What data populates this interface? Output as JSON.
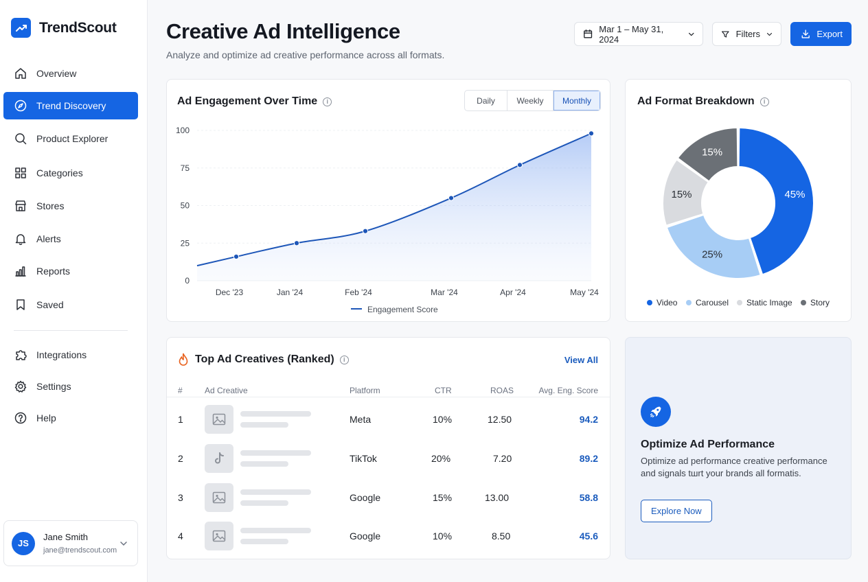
{
  "brand": {
    "name": "TrendScout"
  },
  "sidebar": {
    "items": [
      {
        "label": "Overview",
        "icon": "home-icon",
        "active": false
      },
      {
        "label": "Trend Discovery",
        "icon": "compass-icon",
        "active": true
      },
      {
        "label": "Product Explorer",
        "icon": "search-icon",
        "active": false
      },
      {
        "label": "Categories",
        "icon": "grid-icon",
        "active": false
      },
      {
        "label": "Stores",
        "icon": "store-icon",
        "active": false
      },
      {
        "label": "Alerts",
        "icon": "bell-icon",
        "active": false
      },
      {
        "label": "Reports",
        "icon": "bar-chart-icon",
        "active": false
      },
      {
        "label": "Saved",
        "icon": "bookmark-icon",
        "active": false
      }
    ],
    "secondary": [
      {
        "label": "Integrations",
        "icon": "puzzle-icon"
      },
      {
        "label": "Settings",
        "icon": "gear-icon"
      },
      {
        "label": "Help",
        "icon": "help-icon"
      }
    ],
    "user": {
      "initials": "JS",
      "name": "Jane Smith",
      "email": "jane@trendscout.com"
    }
  },
  "header": {
    "title": "Creative Ad Intelligence",
    "subtitle": "Analyze and optimize ad creative performance across all formats.",
    "date_range": "Mar 1 – May 31, 2024",
    "filters_label": "Filters",
    "export_label": "Export"
  },
  "engagement": {
    "title": "Ad Engagement Over Time",
    "tabs": [
      "Daily",
      "Weekly",
      "Monthly"
    ],
    "active_tab": "Monthly"
  },
  "format_breakdown": {
    "title": "Ad Format Breakdown"
  },
  "chart_data": [
    {
      "type": "area",
      "x": [
        "Dec '23",
        "Jan '24",
        "Feb '24",
        "Mar '24",
        "Apr '24",
        "May '24"
      ],
      "series": [
        {
          "name": "Engagement Score",
          "values": [
            16,
            25,
            33,
            55,
            77,
            98
          ],
          "start_value": 10,
          "color": "#1d56b8"
        }
      ],
      "yticks": [
        0,
        25,
        50,
        75,
        100
      ],
      "ylim": [
        0,
        100
      ],
      "grid": true,
      "legend": "bottom"
    },
    {
      "type": "pie",
      "categories": [
        "Video",
        "Carousel",
        "Static Image",
        "Story"
      ],
      "values": [
        45,
        25,
        15,
        15
      ],
      "labels": [
        "45%",
        "25%",
        "15%",
        "15%"
      ],
      "colors": [
        "#1565e3",
        "#a7cdf5",
        "#d9dbdf",
        "#6b7076"
      ],
      "legend": "bottom"
    }
  ],
  "top_creatives": {
    "title": "Top Ad Creatives (Ranked)",
    "view_all": "View All",
    "columns": [
      "#",
      "Ad Creative",
      "Platform",
      "CTR",
      "ROAS",
      "Avg. Eng. Score"
    ],
    "rows": [
      {
        "rank": "1",
        "thumb": "image-icon",
        "platform": "Meta",
        "ctr": "10%",
        "roas": "12.50",
        "score": "94.2"
      },
      {
        "rank": "2",
        "thumb": "tiktok-icon",
        "platform": "TikTok",
        "ctr": "20%",
        "roas": "7.20",
        "score": "89.2"
      },
      {
        "rank": "3",
        "thumb": "image-icon",
        "platform": "Google",
        "ctr": "15%",
        "roas": "13.00",
        "score": "58.8"
      },
      {
        "rank": "4",
        "thumb": "image-icon",
        "platform": "Google",
        "ctr": "10%",
        "roas": "8.50",
        "score": "45.6"
      }
    ]
  },
  "promo": {
    "title": "Optimize Ad Performance",
    "text": "Optimize ad performance creative performance and signals tшrt your brands all formatis.",
    "button": "Explore Now"
  },
  "colors": {
    "accent": "#1565e3",
    "score": "#1a5bbd"
  }
}
